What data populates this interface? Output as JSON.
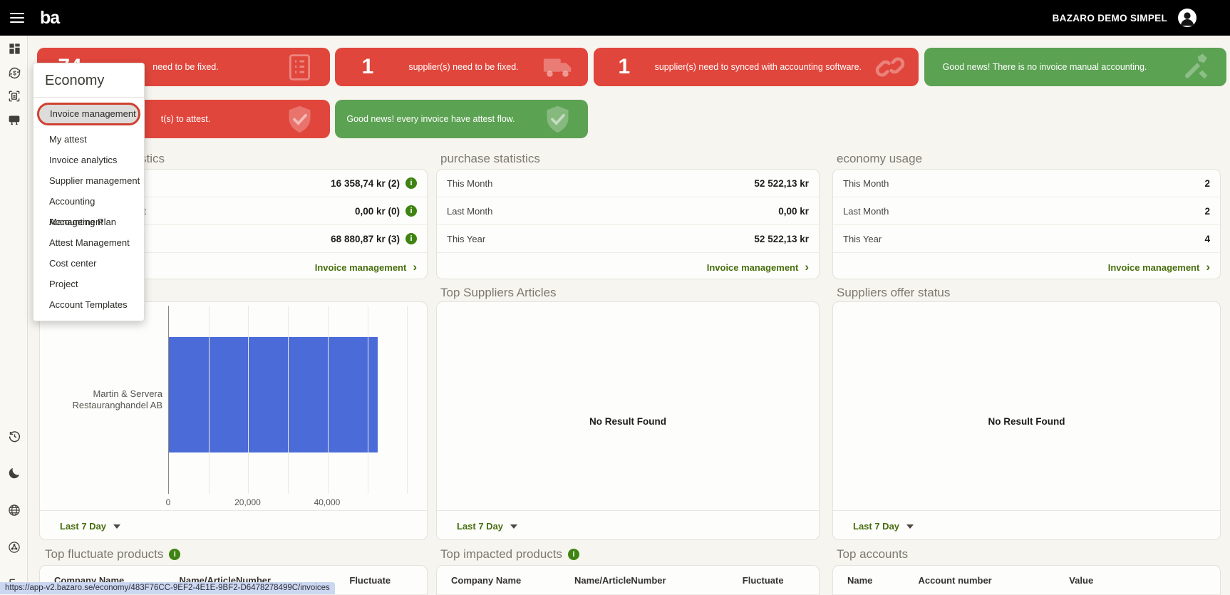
{
  "topbar": {
    "brand": "ba",
    "account": "BAZARO DEMO SIMPEL"
  },
  "menu": {
    "title": "Economy",
    "items": [
      {
        "label": "Invoice management",
        "active": true
      },
      {
        "label": "My attest",
        "active": false
      },
      {
        "label": "Invoice analytics",
        "active": false
      },
      {
        "label": "Supplier management",
        "active": false
      },
      {
        "label": "Accounting Management",
        "active": false
      },
      {
        "label": "Accounting Plan",
        "active": false
      },
      {
        "label": "Attest Management",
        "active": false
      },
      {
        "label": "Cost center",
        "active": false
      },
      {
        "label": "Project",
        "active": false
      },
      {
        "label": "Account Templates",
        "active": false
      }
    ]
  },
  "alerts": [
    {
      "value": "74",
      "message": "need to be fixed.",
      "icon": "invoice-list",
      "tone": "red"
    },
    {
      "value": "1",
      "message": "supplier(s) need to be fixed.",
      "icon": "truck",
      "tone": "red"
    },
    {
      "value": "1",
      "message": "supplier(s) need to synced with accounting software.",
      "icon": "chain-link",
      "tone": "red"
    },
    {
      "message": "Good news! There is no invoice manual accounting.",
      "icon": "tools",
      "tone": "green"
    },
    {
      "message": "t(s) to attest.",
      "icon": "shield-check",
      "tone": "red"
    },
    {
      "message": "Good news! every invoice have attest flow.",
      "icon": "shield-check",
      "tone": "green"
    }
  ],
  "stats": {
    "invoice": {
      "title_visible": "stics",
      "rows": [
        {
          "label_visible": "",
          "value": "16 358,74 kr (2)"
        },
        {
          "label_visible": "nt",
          "value": "0,00 kr (0)"
        },
        {
          "label_visible": "s",
          "value": "68 880,87 kr (3)"
        }
      ],
      "footer_link": "Invoice management"
    },
    "purchase": {
      "title": "purchase statistics",
      "rows": [
        {
          "label": "This Month",
          "value": "52 522,13 kr"
        },
        {
          "label": "Last Month",
          "value": "0,00 kr"
        },
        {
          "label": "This Year",
          "value": "52 522,13 kr"
        }
      ],
      "footer_link": "Invoice management"
    },
    "economy": {
      "title": "economy usage",
      "rows": [
        {
          "label": "This Month",
          "value": "2"
        },
        {
          "label": "Last Month",
          "value": "2"
        },
        {
          "label": "This Year",
          "value": "4"
        }
      ],
      "footer_link": "Invoice management"
    }
  },
  "chart_data": {
    "type": "bar",
    "orientation": "horizontal",
    "categories": [
      "Martin & Servera Restauranghandel AB"
    ],
    "values": [
      52522
    ],
    "xlim": [
      0,
      61000
    ],
    "grid_step": 10000,
    "x_ticks": [
      {
        "value": 0,
        "label": "0"
      },
      {
        "value": 20000,
        "label": "20,000"
      },
      {
        "value": 40000,
        "label": "40,000"
      }
    ],
    "bar_color": "#4b6bd8",
    "title": "",
    "xlabel": "",
    "ylabel": ""
  },
  "panels": {
    "chart_panel": {
      "range_label": "Last 7 Day"
    },
    "suppliers_articles": {
      "title": "Top Suppliers Articles",
      "empty_text": "No Result Found",
      "range_label": "Last 7 Day"
    },
    "offer_status": {
      "title": "Suppliers offer status",
      "empty_text": "No Result Found",
      "range_label": "Last 7 Day"
    }
  },
  "tables": {
    "fluctuate": {
      "title": "Top fluctuate products",
      "headers": [
        "Company Name",
        "Name/ArticleNumber",
        "Fluctuate"
      ]
    },
    "impacted": {
      "title": "Top impacted products",
      "headers": [
        "Company Name",
        "Name/ArticleNumber",
        "Fluctuate"
      ]
    },
    "accounts": {
      "title": "Top accounts",
      "headers": [
        "Name",
        "Account number",
        "Value"
      ]
    }
  },
  "statusbar": {
    "url": "https://app-v2.bazaro.se/economy/483F76CC-9EF2-4E1E-9BF2-D6478278499C/invoices"
  }
}
